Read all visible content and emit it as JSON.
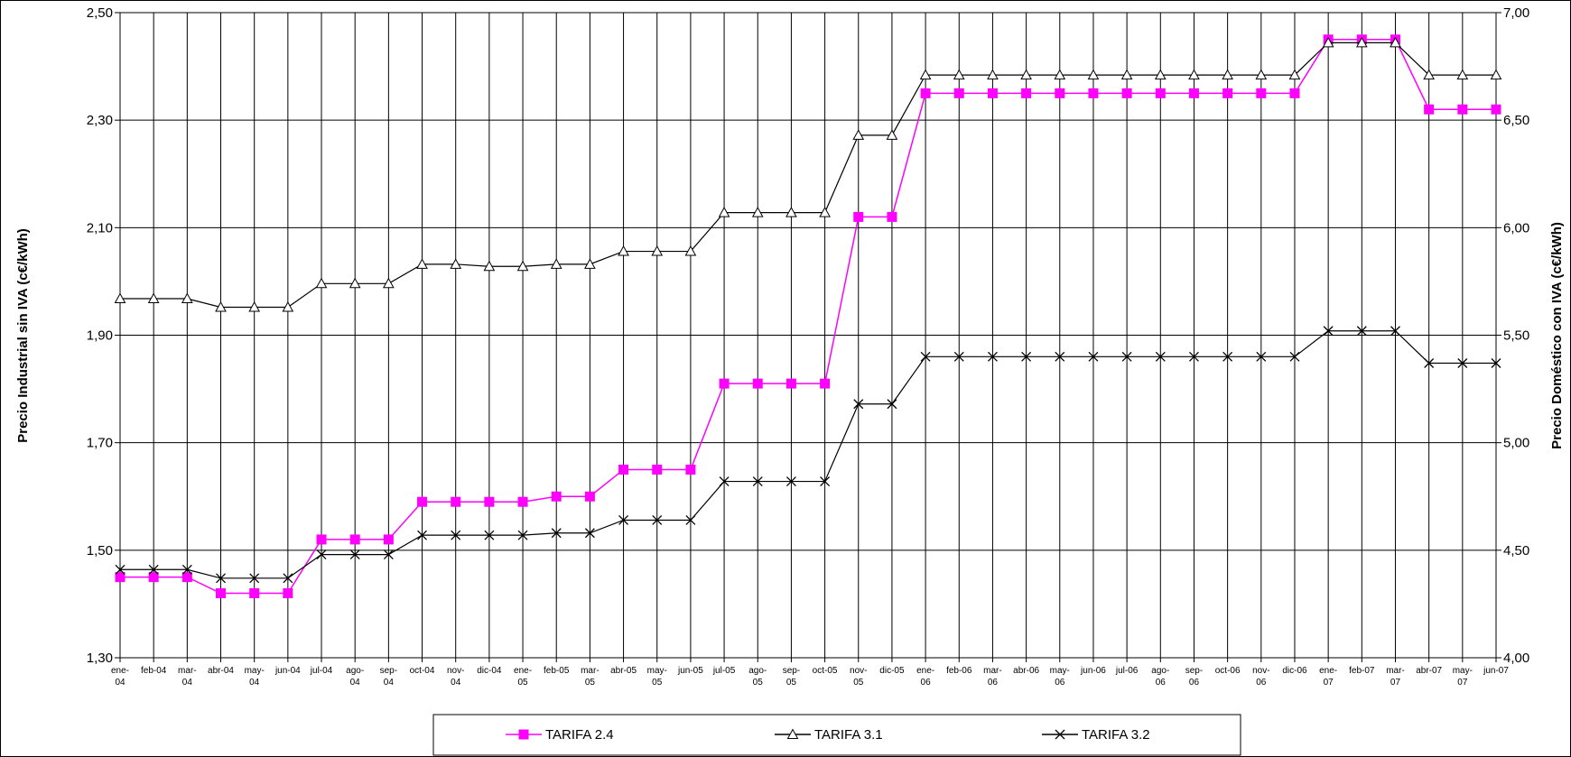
{
  "chart_data": {
    "type": "line",
    "title": "",
    "ylabel": "Precio Industrial sin IVA (c€/kWh)",
    "y2label": "Precio Doméstico con IVA (c€/kWh)",
    "ylim": [
      1.3,
      2.5
    ],
    "y2lim": [
      4.0,
      7.0
    ],
    "yticks": [
      "1,30",
      "1,50",
      "1,70",
      "1,90",
      "2,10",
      "2,30",
      "2,50"
    ],
    "y2ticks": [
      "4,00",
      "4,50",
      "5,00",
      "5,50",
      "6,00",
      "6,50",
      "7,00"
    ],
    "grid": true,
    "legend_position": "bottom",
    "categories": [
      "ene-04",
      "feb-04",
      "mar-04",
      "abr-04",
      "may-04",
      "jun-04",
      "jul-04",
      "ago-04",
      "sep-04",
      "oct-04",
      "nov-04",
      "dic-04",
      "ene-05",
      "feb-05",
      "mar-05",
      "abr-05",
      "may-05",
      "jun-05",
      "jul-05",
      "ago-05",
      "sep-05",
      "oct-05",
      "nov-05",
      "dic-05",
      "ene-06",
      "feb-06",
      "mar-06",
      "abr-06",
      "may-06",
      "jun-06",
      "jul-06",
      "ago-06",
      "sep-06",
      "oct-06",
      "nov-06",
      "dic-06",
      "ene-07",
      "feb-07",
      "mar-07",
      "abr-07",
      "may-07",
      "jun-07"
    ],
    "series": [
      {
        "name": "TARIFA 2.4",
        "axis": "left",
        "color": "#ff00ff",
        "marker": "square",
        "values": [
          1.45,
          1.45,
          1.45,
          1.42,
          1.42,
          1.42,
          1.52,
          1.52,
          1.52,
          1.59,
          1.59,
          1.59,
          1.59,
          1.6,
          1.6,
          1.65,
          1.65,
          1.65,
          1.81,
          1.81,
          1.81,
          1.81,
          2.12,
          2.12,
          2.35,
          2.35,
          2.35,
          2.35,
          2.35,
          2.35,
          2.35,
          2.35,
          2.35,
          2.35,
          2.35,
          2.35,
          2.45,
          2.45,
          2.45,
          2.32,
          2.32,
          2.32
        ]
      },
      {
        "name": "TARIFA 3.1",
        "axis": "right",
        "color": "#000000",
        "marker": "triangle",
        "values": [
          5.67,
          5.67,
          5.67,
          5.63,
          5.63,
          5.63,
          5.74,
          5.74,
          5.74,
          5.83,
          5.83,
          5.82,
          5.82,
          5.83,
          5.83,
          5.89,
          5.89,
          5.89,
          6.07,
          6.07,
          6.07,
          6.07,
          6.43,
          6.43,
          6.71,
          6.71,
          6.71,
          6.71,
          6.71,
          6.71,
          6.71,
          6.71,
          6.71,
          6.71,
          6.71,
          6.71,
          6.86,
          6.86,
          6.86,
          6.71,
          6.71,
          6.71
        ]
      },
      {
        "name": "TARIFA 3.2",
        "axis": "right",
        "color": "#000000",
        "marker": "x",
        "values": [
          4.41,
          4.41,
          4.41,
          4.37,
          4.37,
          4.37,
          4.48,
          4.48,
          4.48,
          4.57,
          4.57,
          4.57,
          4.57,
          4.58,
          4.58,
          4.64,
          4.64,
          4.64,
          4.82,
          4.82,
          4.82,
          4.82,
          5.18,
          5.18,
          5.4,
          5.4,
          5.4,
          5.4,
          5.4,
          5.4,
          5.4,
          5.4,
          5.4,
          5.4,
          5.4,
          5.4,
          5.52,
          5.52,
          5.52,
          5.37,
          5.37,
          5.37
        ]
      }
    ]
  }
}
